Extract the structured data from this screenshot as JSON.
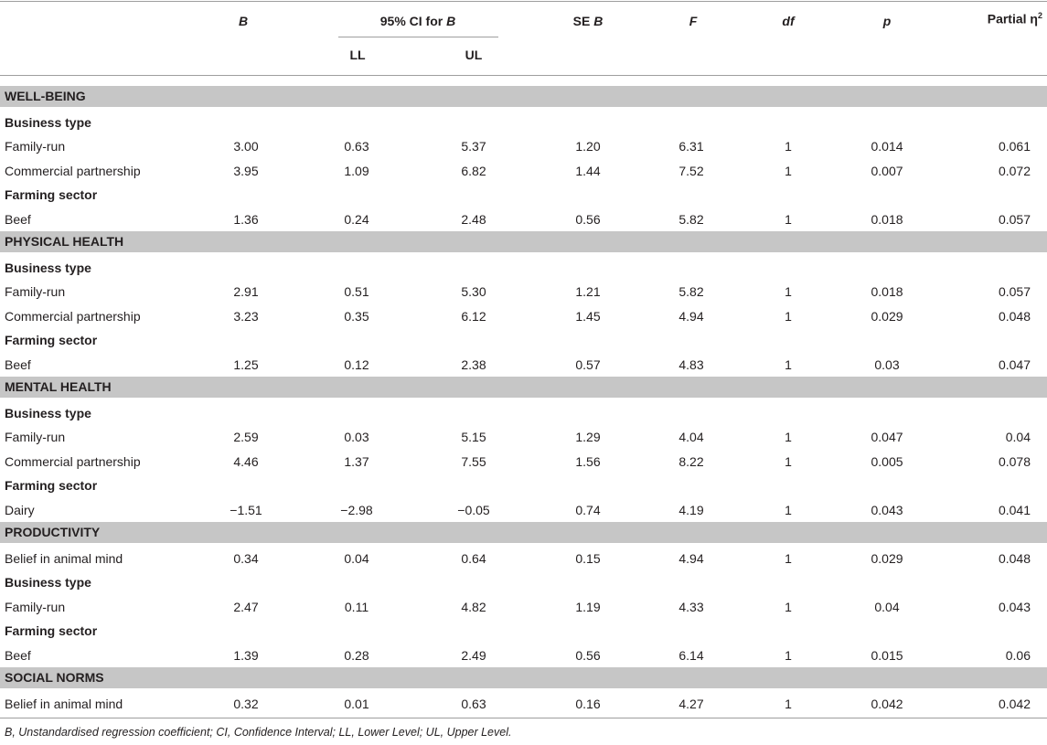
{
  "header": {
    "b": "B",
    "ci_prefix": "95% CI for ",
    "ci_b": "B",
    "ll": "LL",
    "ul": "UL",
    "se_prefix": "SE ",
    "se_b": "B",
    "f": "F",
    "df": "df",
    "p": "p",
    "eta": "Partial η",
    "eta_sup": "2"
  },
  "rows": [
    {
      "type": "section",
      "label": "WELL-BEING"
    },
    {
      "type": "sub",
      "label": "Business type"
    },
    {
      "type": "data",
      "label": "Family-run",
      "values": [
        "3.00",
        "0.63",
        "5.37",
        "1.20",
        "6.31",
        "1",
        "0.014",
        "0.061"
      ]
    },
    {
      "type": "data",
      "label": "Commercial partnership",
      "values": [
        "3.95",
        "1.09",
        "6.82",
        "1.44",
        "7.52",
        "1",
        "0.007",
        "0.072"
      ]
    },
    {
      "type": "sub",
      "label": "Farming sector"
    },
    {
      "type": "data",
      "label": "Beef",
      "values": [
        "1.36",
        "0.24",
        "2.48",
        "0.56",
        "5.82",
        "1",
        "0.018",
        "0.057"
      ]
    },
    {
      "type": "section",
      "label": "PHYSICAL HEALTH"
    },
    {
      "type": "sub",
      "label": "Business type"
    },
    {
      "type": "data",
      "label": "Family-run",
      "values": [
        "2.91",
        "0.51",
        "5.30",
        "1.21",
        "5.82",
        "1",
        "0.018",
        "0.057"
      ]
    },
    {
      "type": "data",
      "label": "Commercial partnership",
      "values": [
        "3.23",
        "0.35",
        "6.12",
        "1.45",
        "4.94",
        "1",
        "0.029",
        "0.048"
      ]
    },
    {
      "type": "sub",
      "label": "Farming sector"
    },
    {
      "type": "data",
      "label": "Beef",
      "values": [
        "1.25",
        "0.12",
        "2.38",
        "0.57",
        "4.83",
        "1",
        "0.03",
        "0.047"
      ]
    },
    {
      "type": "section",
      "label": "MENTAL HEALTH"
    },
    {
      "type": "sub",
      "label": "Business type"
    },
    {
      "type": "data",
      "label": "Family-run",
      "values": [
        "2.59",
        "0.03",
        "5.15",
        "1.29",
        "4.04",
        "1",
        "0.047",
        "0.04"
      ]
    },
    {
      "type": "data",
      "label": "Commercial partnership",
      "values": [
        "4.46",
        "1.37",
        "7.55",
        "1.56",
        "8.22",
        "1",
        "0.005",
        "0.078"
      ]
    },
    {
      "type": "sub",
      "label": "Farming sector"
    },
    {
      "type": "data",
      "label": "Dairy",
      "values": [
        "−1.51",
        "−2.98",
        "−0.05",
        "0.74",
        "4.19",
        "1",
        "0.043",
        "0.041"
      ]
    },
    {
      "type": "section",
      "label": "PRODUCTIVITY"
    },
    {
      "type": "data",
      "label": "Belief in animal mind",
      "values": [
        "0.34",
        "0.04",
        "0.64",
        "0.15",
        "4.94",
        "1",
        "0.029",
        "0.048"
      ]
    },
    {
      "type": "sub",
      "label": "Business type"
    },
    {
      "type": "data",
      "label": "Family-run",
      "values": [
        "2.47",
        "0.11",
        "4.82",
        "1.19",
        "4.33",
        "1",
        "0.04",
        "0.043"
      ]
    },
    {
      "type": "sub",
      "label": "Farming sector"
    },
    {
      "type": "data",
      "label": "Beef",
      "values": [
        "1.39",
        "0.28",
        "2.49",
        "0.56",
        "6.14",
        "1",
        "0.015",
        "0.06"
      ]
    },
    {
      "type": "section",
      "label": "SOCIAL NORMS"
    },
    {
      "type": "data",
      "label": "Belief in animal mind",
      "values": [
        "0.32",
        "0.01",
        "0.63",
        "0.16",
        "4.27",
        "1",
        "0.042",
        "0.042"
      ]
    }
  ],
  "footnote": "B, Unstandardised regression coefficient; CI, Confidence Interval; LL, Lower Level; UL, Upper Level."
}
